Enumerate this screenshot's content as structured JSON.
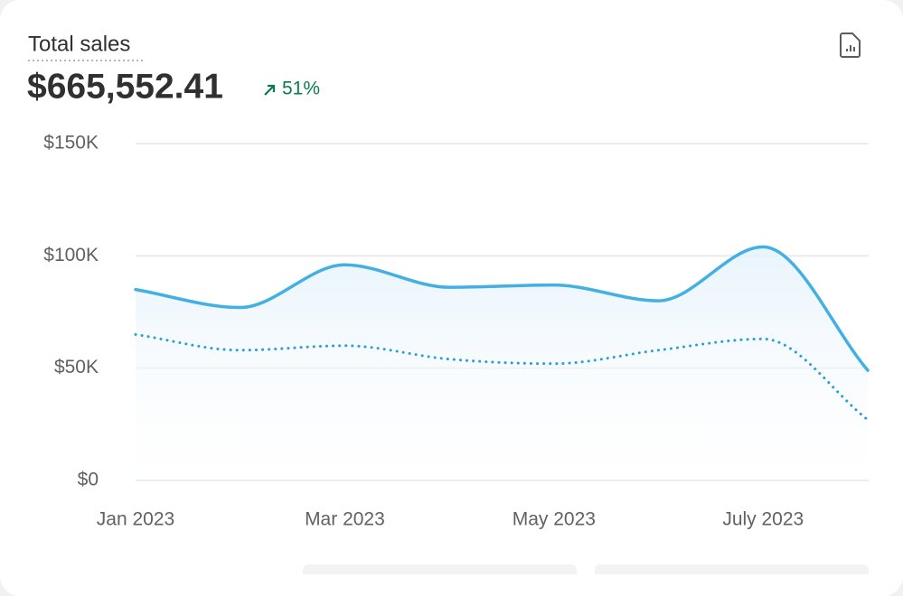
{
  "card": {
    "title": "Total sales",
    "total": "$665,552.41",
    "change": "51%"
  },
  "chart_data": {
    "type": "line",
    "categories": [
      "Jan 2023",
      null,
      "Mar 2023",
      null,
      "May 2023",
      null,
      "July 2023",
      null
    ],
    "series": [
      {
        "color": "#42b0e3",
        "style": "solid",
        "area": true,
        "values": [
          85000,
          77000,
          96000,
          86000,
          87000,
          80000,
          104000,
          49000
        ]
      },
      {
        "color": "#2a9fd4",
        "style": "dotted",
        "values": [
          65000,
          58000,
          60000,
          54000,
          52000,
          58000,
          63000,
          27000
        ]
      }
    ],
    "ylim": [
      0,
      150000
    ],
    "yticks": [
      {
        "value": 0,
        "label": "$0"
      },
      {
        "value": 50000,
        "label": "$50K"
      },
      {
        "value": 100000,
        "label": "$100K"
      },
      {
        "value": 150000,
        "label": "$150K"
      }
    ],
    "grid": true
  }
}
